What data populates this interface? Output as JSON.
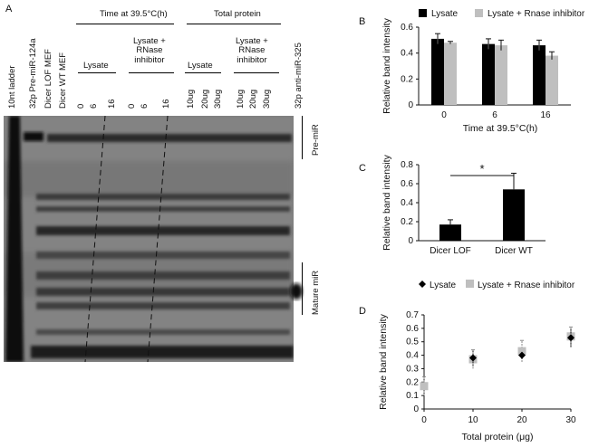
{
  "panels": {
    "a": "A",
    "b": "B",
    "c": "C",
    "d": "D"
  },
  "gel": {
    "header_time": "Time at 39.5°C(h)",
    "header_protein": "Total protein",
    "sub_lysate_1": "Lysate",
    "sub_lysate_rnase_1": "Lysate +\nRNase\ninhibitor",
    "sub_lysate_2": "Lysate",
    "sub_lysate_rnase_2": "Lysate +\nRNase\ninhibitor",
    "lanes": [
      "10nt ladder",
      "32p Pre-miR-124a",
      "Dicer LOF MEF",
      "Dicer WT MEF",
      "0",
      "6",
      "16",
      "0",
      "6",
      "16",
      "10ug",
      "20ug",
      "30ug",
      "10ug",
      "20ug",
      "30ug",
      "32p anti-miR-325"
    ],
    "pre_mir": "Pre-miR",
    "mature_mir": "Mature miR"
  },
  "chart_data": [
    {
      "type": "bar",
      "panel": "B",
      "categories": [
        "0",
        "6",
        "16"
      ],
      "series": [
        {
          "name": "Lysate",
          "values": [
            0.51,
            0.47,
            0.46
          ],
          "errors": [
            0.04,
            0.04,
            0.04
          ],
          "color": "#000000"
        },
        {
          "name": "Lysate + Rnase inhibitor",
          "values": [
            0.48,
            0.46,
            0.38
          ],
          "errors": [
            0.01,
            0.04,
            0.03
          ],
          "color": "#bfbfbf"
        }
      ],
      "xlabel": "Time at 39.5°C(h)",
      "ylabel": "Relative band intensity",
      "ylim": [
        0,
        0.6
      ],
      "yticks": [
        "0",
        "0.2",
        "0.4",
        "0.6"
      ],
      "legend": "top",
      "grid": false
    },
    {
      "type": "bar",
      "panel": "C",
      "categories": [
        "Dicer LOF",
        "Dicer WT"
      ],
      "values": [
        0.17,
        0.54
      ],
      "errors": [
        0.05,
        0.17
      ],
      "color": "#000000",
      "ylabel": "Relative band intensity",
      "ylim": [
        0,
        0.8
      ],
      "yticks": [
        "0",
        "0.2",
        "0.4",
        "0.6",
        "0.8"
      ],
      "significance": "*",
      "grid": false
    },
    {
      "type": "scatter",
      "panel": "D",
      "series": [
        {
          "name": "Lysate",
          "marker": "diamond",
          "color": "#000000",
          "x": [
            10,
            20,
            30
          ],
          "y": [
            0.38,
            0.4,
            0.53
          ],
          "errors": [
            0.06,
            0.03,
            0.07
          ]
        },
        {
          "name": "Lysate + Rnase inhibitor",
          "marker": "square",
          "color": "#bfbfbf",
          "x": [
            0,
            10,
            20,
            30
          ],
          "y": [
            0.17,
            0.37,
            0.43,
            0.54
          ],
          "errors": [
            0.07,
            0.07,
            0.08,
            0.07
          ]
        }
      ],
      "xlabel": "Total protein (μg)",
      "ylabel": "Relative band intensity",
      "xlim": [
        0,
        30
      ],
      "xticks": [
        "0",
        "10",
        "20",
        "30"
      ],
      "ylim": [
        0,
        0.7
      ],
      "yticks": [
        "0",
        "0.1",
        "0.2",
        "0.3",
        "0.4",
        "0.5",
        "0.6",
        "0.7"
      ],
      "legend": "top",
      "grid": false
    }
  ]
}
